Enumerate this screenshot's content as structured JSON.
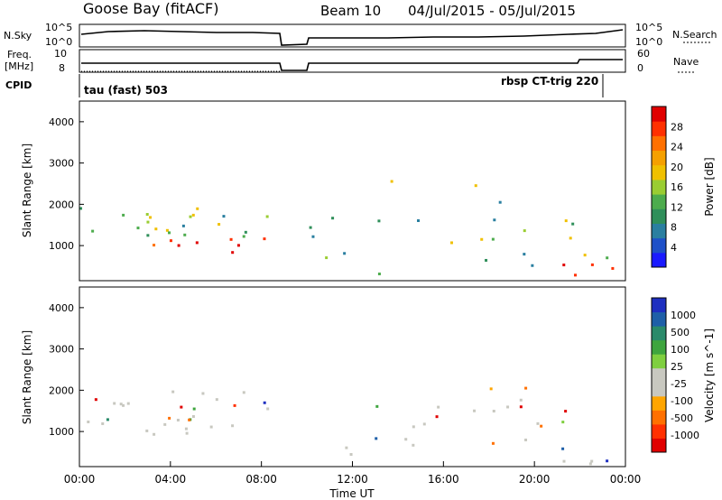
{
  "header": {
    "station": "Goose Bay (fitACF)",
    "beam": "Beam 10",
    "date_range": "04/Jul/2015 - 05/Jul/2015"
  },
  "left_labels": {
    "nsky": "N.Sky",
    "freq_line1": "Freq.",
    "freq_line2": "[MHz]",
    "cpid": "CPID"
  },
  "right_labels": {
    "nsearch": "N.Search",
    "nave": "Nave"
  },
  "noise_axis": {
    "top": "10^5",
    "bottom": "10^0"
  },
  "freq_axis": {
    "left_top": "10",
    "left_bottom": "8",
    "right_top": "60",
    "right_bottom": "0"
  },
  "cpid_entries": [
    "tau (fast) 503",
    "rbsp CT-trig 220"
  ],
  "colors": {
    "power": [
      "#1a1aff",
      "#1e50c8",
      "#2a7fa0",
      "#2f8f5a",
      "#4dac4d",
      "#9acd32",
      "#f0c000",
      "#f5a000",
      "#ff7000",
      "#ff3000",
      "#e00000"
    ],
    "velocity": [
      "#1e2fc0",
      "#1e5fa8",
      "#2a8a6a",
      "#3ea53e",
      "#7fcf3f",
      "#c8c8c0",
      "#c8c8c0",
      "#ffa500",
      "#ff7000",
      "#ff3000",
      "#e00000"
    ]
  },
  "chart_data": [
    {
      "type": "heatmap",
      "name": "Power",
      "ylabel": "Slant Range [km]",
      "yticks": [
        "1000",
        "2000",
        "3000",
        "4000"
      ],
      "xticks": [
        "00:00",
        "04:00",
        "08:00",
        "12:00",
        "16:00",
        "20:00",
        "00:00"
      ],
      "colorbar_label": "Power [dB]",
      "colorbar_ticks": [
        "4",
        "8",
        "12",
        "16",
        "20",
        "24",
        "28"
      ]
    },
    {
      "type": "heatmap",
      "name": "Velocity",
      "ylabel": "Slant Range [km]",
      "yticks": [
        "1000",
        "2000",
        "3000",
        "4000"
      ],
      "xticks": [
        "00:00",
        "04:00",
        "08:00",
        "12:00",
        "16:00",
        "20:00",
        "00:00"
      ],
      "xlabel": "Time UT",
      "colorbar_label": "Velocity [m s^-1]",
      "colorbar_ticks": [
        "1000",
        "500",
        "100",
        "25",
        "-25",
        "-100",
        "-500",
        "-1000"
      ]
    }
  ]
}
